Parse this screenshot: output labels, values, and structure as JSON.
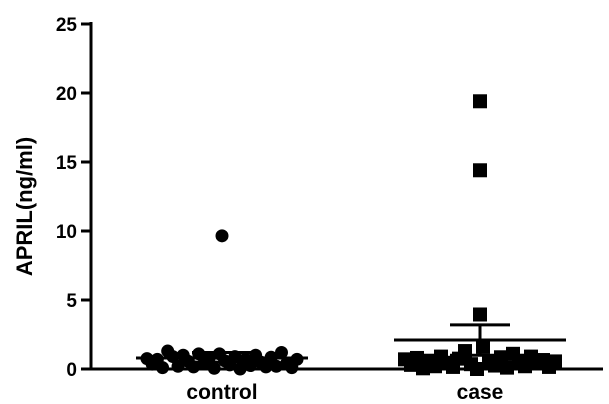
{
  "chart_data": {
    "type": "scatter",
    "title": "",
    "xlabel": "",
    "ylabel": "APRIL(ng/ml)",
    "ylim": [
      0,
      25
    ],
    "yticks": [
      0,
      5,
      10,
      15,
      20,
      25
    ],
    "categories": [
      "control",
      "case"
    ],
    "grid": false,
    "legend": "none",
    "series": [
      {
        "category": "control",
        "marker": "circle",
        "color": "#000000",
        "mean": 0.8,
        "sem_upper": 1.2,
        "sem_lower": 0.5,
        "values": [
          0.75,
          0.35,
          0.7,
          0.1,
          1.3,
          0.9,
          0.2,
          1.0,
          0.55,
          0.15,
          1.1,
          0.4,
          0.8,
          0.05,
          1.1,
          0.6,
          0.3,
          0.9,
          0.0,
          0.7,
          0.25,
          1.0,
          0.5,
          0.15,
          0.85,
          0.2,
          1.2,
          0.4,
          0.1,
          0.7,
          9.65
        ]
      },
      {
        "category": "case",
        "marker": "square",
        "color": "#000000",
        "mean": 2.1,
        "sem_upper": 3.2,
        "sem_lower": 1.0,
        "values": [
          0.7,
          0.3,
          0.8,
          0.05,
          0.6,
          0.2,
          0.9,
          0.45,
          0.15,
          0.75,
          1.3,
          0.35,
          0.0,
          1.6,
          0.5,
          0.25,
          0.85,
          0.1,
          1.1,
          0.6,
          0.2,
          0.9,
          0.4,
          0.65,
          0.15,
          0.55,
          3.95,
          14.4,
          19.4
        ]
      }
    ]
  }
}
